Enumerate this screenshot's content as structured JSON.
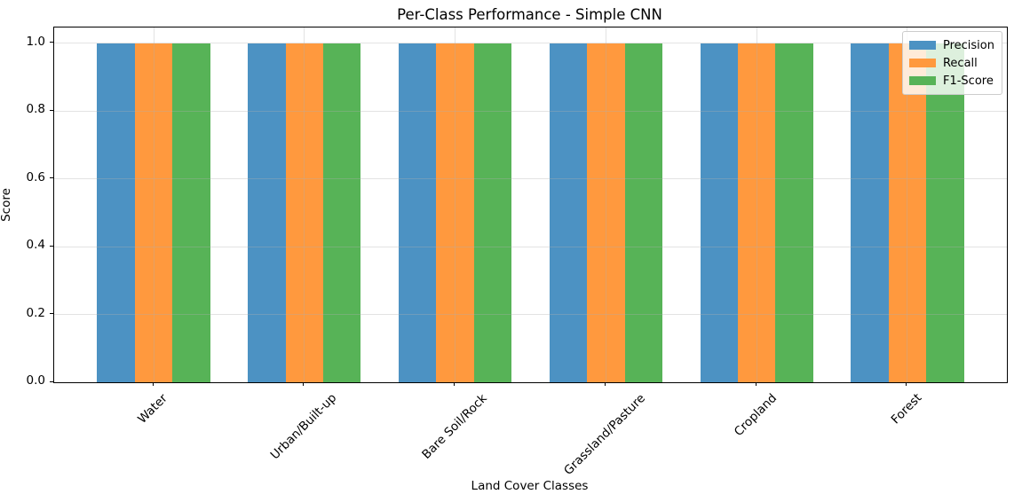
{
  "chart_data": {
    "type": "bar",
    "title": "Per-Class Performance - Simple CNN",
    "xlabel": "Land Cover Classes",
    "ylabel": "Score",
    "categories": [
      "Water",
      "Urban/Built-up",
      "Bare Soil/Rock",
      "Grassland/Pasture",
      "Cropland",
      "Forest"
    ],
    "series": [
      {
        "name": "Precision",
        "color": "#4C92C3",
        "values": [
          1.0,
          1.0,
          1.0,
          1.0,
          1.0,
          1.0
        ]
      },
      {
        "name": "Recall",
        "color": "#FF993E",
        "values": [
          1.0,
          1.0,
          1.0,
          1.0,
          1.0,
          1.0
        ]
      },
      {
        "name": "F1-Score",
        "color": "#57B357",
        "values": [
          1.0,
          1.0,
          1.0,
          1.0,
          1.0,
          1.0
        ]
      }
    ],
    "ylim": [
      0,
      1.05
    ],
    "yticks": [
      0.0,
      0.2,
      0.4,
      0.6,
      0.8,
      1.0
    ],
    "grid": true,
    "grid_color": "#b0b0b0",
    "legend_position": "upper right",
    "legend_entries": [
      "Precision",
      "Recall",
      "F1-Score"
    ]
  }
}
